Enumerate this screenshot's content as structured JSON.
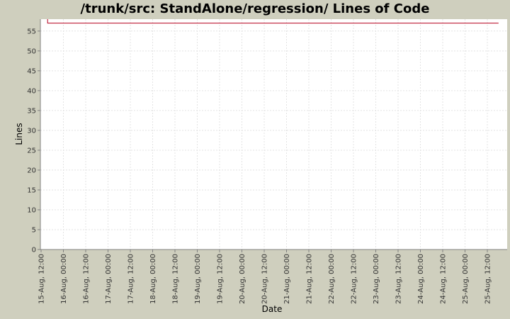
{
  "chart_data": {
    "type": "line",
    "title": "/trunk/src: StandAlone/regression/ Lines of Code",
    "xlabel": "Date",
    "ylabel": "Lines",
    "ylim": [
      0,
      58
    ],
    "yticks": [
      0,
      5,
      10,
      15,
      20,
      25,
      30,
      35,
      40,
      45,
      50,
      55
    ],
    "xticks": [
      "15-Aug, 12:00",
      "16-Aug, 00:00",
      "16-Aug, 12:00",
      "17-Aug, 00:00",
      "17-Aug, 12:00",
      "18-Aug, 00:00",
      "18-Aug, 12:00",
      "19-Aug, 00:00",
      "19-Aug, 12:00",
      "20-Aug, 00:00",
      "20-Aug, 12:00",
      "21-Aug, 00:00",
      "21-Aug, 12:00",
      "22-Aug, 00:00",
      "22-Aug, 12:00",
      "23-Aug, 00:00",
      "23-Aug, 12:00",
      "24-Aug, 00:00",
      "24-Aug, 12:00",
      "25-Aug, 00:00",
      "25-Aug, 12:00"
    ],
    "grid": true,
    "series": [
      {
        "color": "#b5001e",
        "points": [
          {
            "x": "15-Aug, 15:30",
            "y": 58
          },
          {
            "x": "15-Aug, 15:30",
            "y": 57
          },
          {
            "x": "25-Aug, 18:00",
            "y": 57
          }
        ]
      }
    ]
  }
}
